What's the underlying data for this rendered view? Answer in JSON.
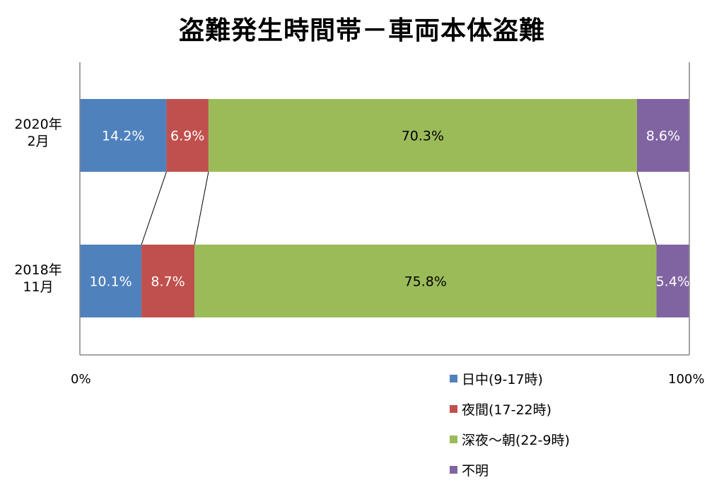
{
  "chart_data": {
    "type": "bar",
    "orientation": "horizontal",
    "stacked": "percent",
    "title": "盗難発生時間帯－車両本体盗難",
    "categories": [
      {
        "line1": "2020年",
        "line2": "2月"
      },
      {
        "line1": "2018年",
        "line2": "11月"
      }
    ],
    "series": [
      {
        "name": "日中(9-17時)",
        "color": "#4f81bd",
        "values": [
          14.2,
          10.1
        ],
        "labels": [
          "14.2%",
          "10.1%"
        ],
        "label_color": "#ffffff"
      },
      {
        "name": "夜間(17-22時)",
        "color": "#c0504d",
        "values": [
          6.9,
          8.7
        ],
        "labels": [
          "6.9%",
          "8.7%"
        ],
        "label_color": "#ffffff"
      },
      {
        "name": "深夜～朝(22-9時)",
        "color": "#9bbb59",
        "values": [
          70.3,
          75.8
        ],
        "labels": [
          "70.3%",
          "75.8%"
        ],
        "label_color": "#000000"
      },
      {
        "name": "不明",
        "color": "#8064a2",
        "values": [
          8.6,
          5.4
        ],
        "labels": [
          "8.6%",
          "5.4%"
        ],
        "label_color": "#ffffff"
      }
    ],
    "xlim": [
      0,
      100
    ],
    "x_tick_labels": [
      "0%",
      "100%"
    ],
    "series_lines": true,
    "legend_position": "bottom-right"
  }
}
